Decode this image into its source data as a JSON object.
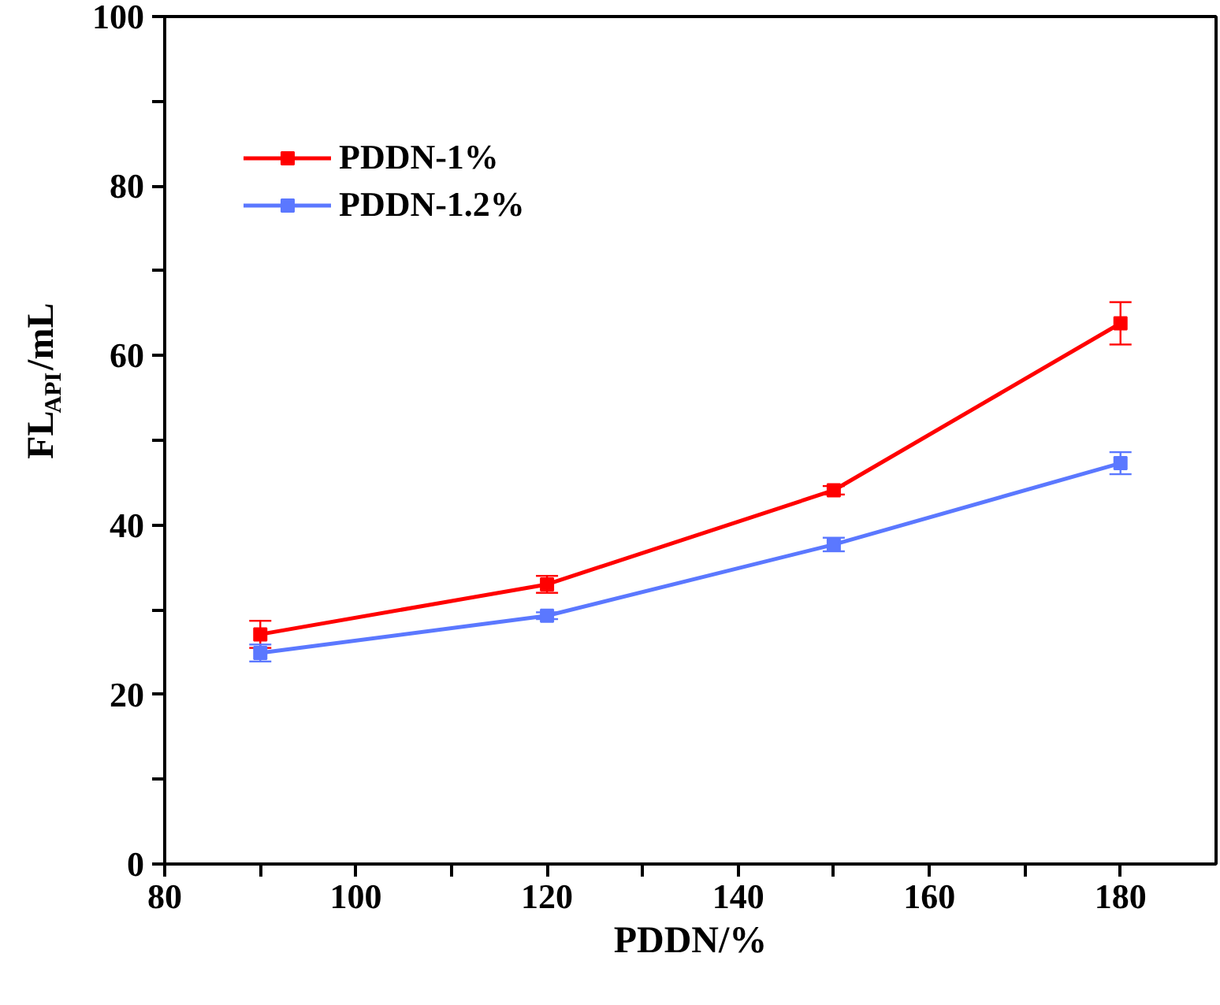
{
  "chart_data": {
    "type": "line",
    "xlabel": "PDDN/%",
    "ylabel": "FL$_{API}$/mL",
    "x": [
      90,
      120,
      150,
      180
    ],
    "series": [
      {
        "name": "PDDN-1%",
        "color": "#ff0000",
        "values": [
          27.1,
          33.0,
          44.1,
          63.8
        ],
        "errors": [
          1.6,
          1.0,
          0.5,
          2.5
        ]
      },
      {
        "name": "PDDN-1.2%",
        "color": "#5b78ff",
        "values": [
          24.9,
          29.3,
          37.7,
          47.3
        ],
        "errors": [
          1.0,
          0.4,
          0.8,
          1.3
        ]
      }
    ],
    "xlim": [
      80,
      190
    ],
    "ylim": [
      0,
      100
    ],
    "xticks": [
      80,
      {
        "value": 90,
        "label": null
      },
      100,
      {
        "value": 110,
        "label": null
      },
      120,
      {
        "value": 130,
        "label": null
      },
      140,
      {
        "value": 150,
        "label": null
      },
      160,
      {
        "value": 170,
        "label": null
      },
      180
    ],
    "yticks": [
      0,
      {
        "value": 10,
        "label": null
      },
      20,
      {
        "value": 30,
        "label": null
      },
      40,
      {
        "value": 50,
        "label": null
      },
      60,
      {
        "value": 70,
        "label": null
      },
      80,
      {
        "value": 90,
        "label": null
      },
      100
    ],
    "grid": false,
    "legend": "top left",
    "marker": "square",
    "line_style": "solid"
  }
}
